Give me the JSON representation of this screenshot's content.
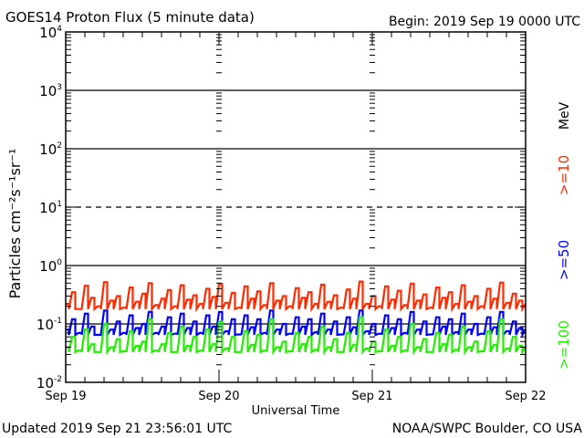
{
  "chart_data": {
    "type": "line",
    "title": "GOES14 Proton Flux (5 minute data)",
    "begin_label": "Begin: 2019 Sep 19 0000 UTC",
    "xlabel": "Universal Time",
    "ylabel": "Particles cm⁻²s⁻¹sr⁻¹",
    "yscale": "log",
    "ylim": [
      0.01,
      10000
    ],
    "ytick_labels": [
      {
        "base": "10",
        "exp": "4",
        "value": 10000
      },
      {
        "base": "10",
        "exp": "3",
        "value": 1000
      },
      {
        "base": "10",
        "exp": "2",
        "value": 100
      },
      {
        "base": "10",
        "exp": "1",
        "value": 10
      },
      {
        "base": "10",
        "exp": "0",
        "value": 1
      },
      {
        "base": "10",
        "exp": "-1",
        "value": 0.1
      },
      {
        "base": "10",
        "exp": "-2",
        "value": 0.01
      }
    ],
    "xlim_hours": [
      0,
      72
    ],
    "xtick_labels": [
      {
        "label": "Sep 19",
        "hour": 0
      },
      {
        "label": "Sep 20",
        "hour": 24
      },
      {
        "label": "Sep 21",
        "hour": 48
      },
      {
        "label": "Sep 22",
        "hour": 72
      }
    ],
    "unit_label": "MeV",
    "grid": {
      "solid": [
        1000,
        100,
        1,
        0.1
      ],
      "dashed": [
        10
      ]
    },
    "series": [
      {
        "name": ">=10",
        "color": "#ff2a00",
        "values": [
          0.22,
          0.35,
          0.18,
          0.45,
          0.28,
          0.2,
          0.52,
          0.25,
          0.3,
          0.19,
          0.42,
          0.24,
          0.33,
          0.5,
          0.21,
          0.27,
          0.38,
          0.2,
          0.46,
          0.26,
          0.31,
          0.22,
          0.4,
          0.29,
          0.48,
          0.23,
          0.34,
          0.19,
          0.44,
          0.27,
          0.36,
          0.21,
          0.5,
          0.25,
          0.3,
          0.2,
          0.41,
          0.28,
          0.35,
          0.22,
          0.47,
          0.24,
          0.31,
          0.19,
          0.39,
          0.27,
          0.53,
          0.22,
          0.3,
          0.2,
          0.44,
          0.26,
          0.37,
          0.21,
          0.49,
          0.25,
          0.32,
          0.19,
          0.42,
          0.28,
          0.35,
          0.22,
          0.46,
          0.24,
          0.3,
          0.2,
          0.4,
          0.27,
          0.51,
          0.23,
          0.33,
          0.25
        ]
      },
      {
        "name": ">=50",
        "color": "#0000ff",
        "values": [
          0.08,
          0.12,
          0.07,
          0.15,
          0.09,
          0.065,
          0.17,
          0.08,
          0.11,
          0.07,
          0.14,
          0.085,
          0.1,
          0.16,
          0.07,
          0.09,
          0.13,
          0.068,
          0.15,
          0.085,
          0.11,
          0.07,
          0.14,
          0.09,
          0.16,
          0.075,
          0.12,
          0.066,
          0.14,
          0.088,
          0.12,
          0.07,
          0.17,
          0.08,
          0.1,
          0.068,
          0.13,
          0.09,
          0.12,
          0.072,
          0.15,
          0.08,
          0.11,
          0.066,
          0.13,
          0.088,
          0.17,
          0.075,
          0.1,
          0.068,
          0.14,
          0.085,
          0.12,
          0.07,
          0.16,
          0.08,
          0.11,
          0.066,
          0.13,
          0.09,
          0.12,
          0.072,
          0.15,
          0.08,
          0.1,
          0.068,
          0.13,
          0.088,
          0.16,
          0.075,
          0.11,
          0.085
        ]
      },
      {
        "name": ">=100",
        "color": "#22ee00",
        "values": [
          0.04,
          0.06,
          0.035,
          0.08,
          0.045,
          0.033,
          0.1,
          0.04,
          0.055,
          0.034,
          0.075,
          0.042,
          0.05,
          0.12,
          0.035,
          0.045,
          0.07,
          0.033,
          0.09,
          0.042,
          0.06,
          0.035,
          0.08,
          0.045,
          0.11,
          0.038,
          0.06,
          0.033,
          0.075,
          0.044,
          0.065,
          0.035,
          0.12,
          0.04,
          0.05,
          0.034,
          0.07,
          0.045,
          0.06,
          0.036,
          0.09,
          0.04,
          0.055,
          0.033,
          0.07,
          0.044,
          0.13,
          0.038,
          0.05,
          0.034,
          0.08,
          0.042,
          0.06,
          0.035,
          0.1,
          0.04,
          0.055,
          0.033,
          0.07,
          0.045,
          0.065,
          0.036,
          0.09,
          0.04,
          0.05,
          0.034,
          0.075,
          0.044,
          0.12,
          0.038,
          0.06,
          0.042
        ]
      }
    ]
  },
  "footer": {
    "updated": "Updated 2019 Sep 21 23:56:01 UTC",
    "source": "NOAA/SWPC Boulder, CO USA"
  }
}
